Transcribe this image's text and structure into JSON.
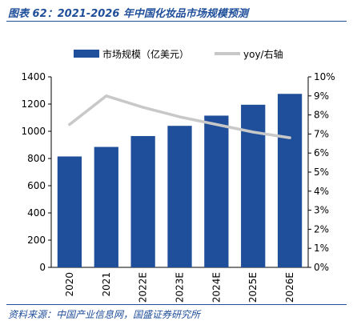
{
  "figure": {
    "title": "图表 62：2021-2026 年中国化妆品市场规模预测",
    "source": "资料来源：中国产业信息网，国盛证券研究所"
  },
  "chart_data": {
    "type": "bar",
    "categories": [
      "2020",
      "2021",
      "2022E",
      "2023E",
      "2024E",
      "2025E",
      "2026E"
    ],
    "series": [
      {
        "name": "市场规模（亿美元）",
        "type": "bar",
        "axis": "left",
        "color": "#1f4e9a",
        "values": [
          815,
          885,
          965,
          1040,
          1115,
          1195,
          1275
        ]
      },
      {
        "name": "yoy/右轴",
        "type": "line",
        "axis": "right",
        "color": "#c8c8c8",
        "values": [
          7.5,
          9.0,
          8.4,
          7.9,
          7.5,
          7.1,
          6.8
        ]
      }
    ],
    "y_left": {
      "min": 0,
      "max": 1400,
      "ticks": [
        "0",
        "200",
        "400",
        "600",
        "800",
        "1000",
        "1200",
        "1400"
      ]
    },
    "y_right": {
      "min": 0,
      "max": 10,
      "ticks": [
        "0%",
        "1%",
        "2%",
        "3%",
        "4%",
        "5%",
        "6%",
        "7%",
        "8%",
        "9%",
        "10%"
      ]
    },
    "legend_position": "top",
    "grid": false
  }
}
